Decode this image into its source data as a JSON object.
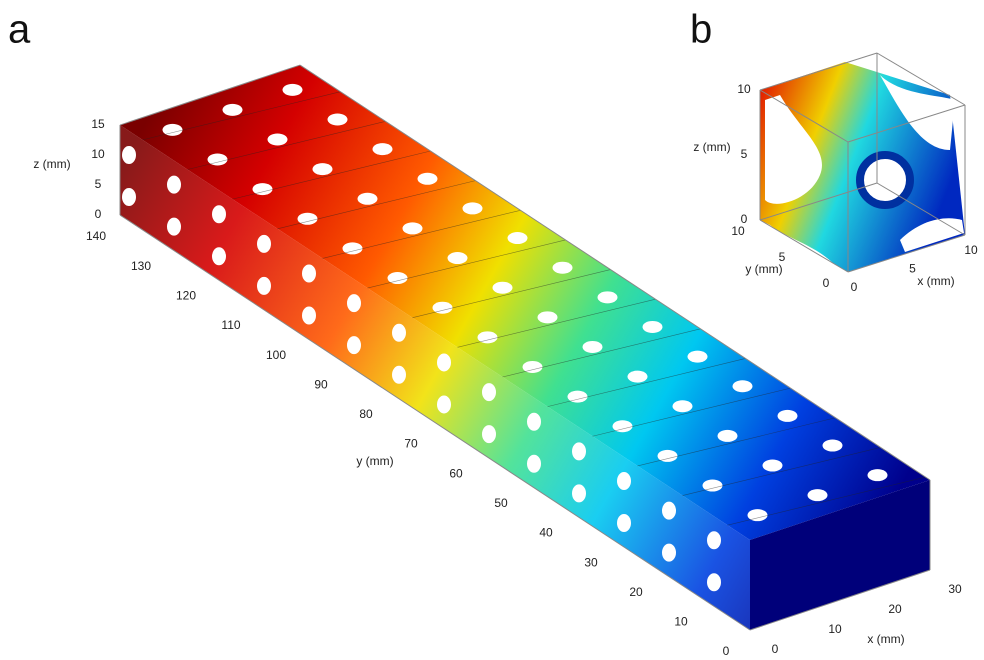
{
  "panels": [
    {
      "label": "a",
      "axes": {
        "x": {
          "label": "x (mm)",
          "ticks": [
            0,
            10,
            20,
            30
          ]
        },
        "y": {
          "label": "y (mm)",
          "ticks": [
            0,
            10,
            20,
            30,
            40,
            50,
            60,
            70,
            80,
            90,
            100,
            110,
            120,
            130,
            140
          ]
        },
        "z": {
          "label": "z (mm)",
          "ticks": [
            0,
            5,
            10,
            15
          ]
        }
      }
    },
    {
      "label": "b",
      "axes": {
        "x": {
          "label": "x (mm)",
          "ticks": [
            0,
            5,
            10
          ]
        },
        "y": {
          "label": "y (mm)",
          "ticks": [
            0,
            5,
            10
          ]
        },
        "z": {
          "label": "z (mm)",
          "ticks": [
            0,
            5,
            10
          ]
        }
      }
    }
  ]
}
